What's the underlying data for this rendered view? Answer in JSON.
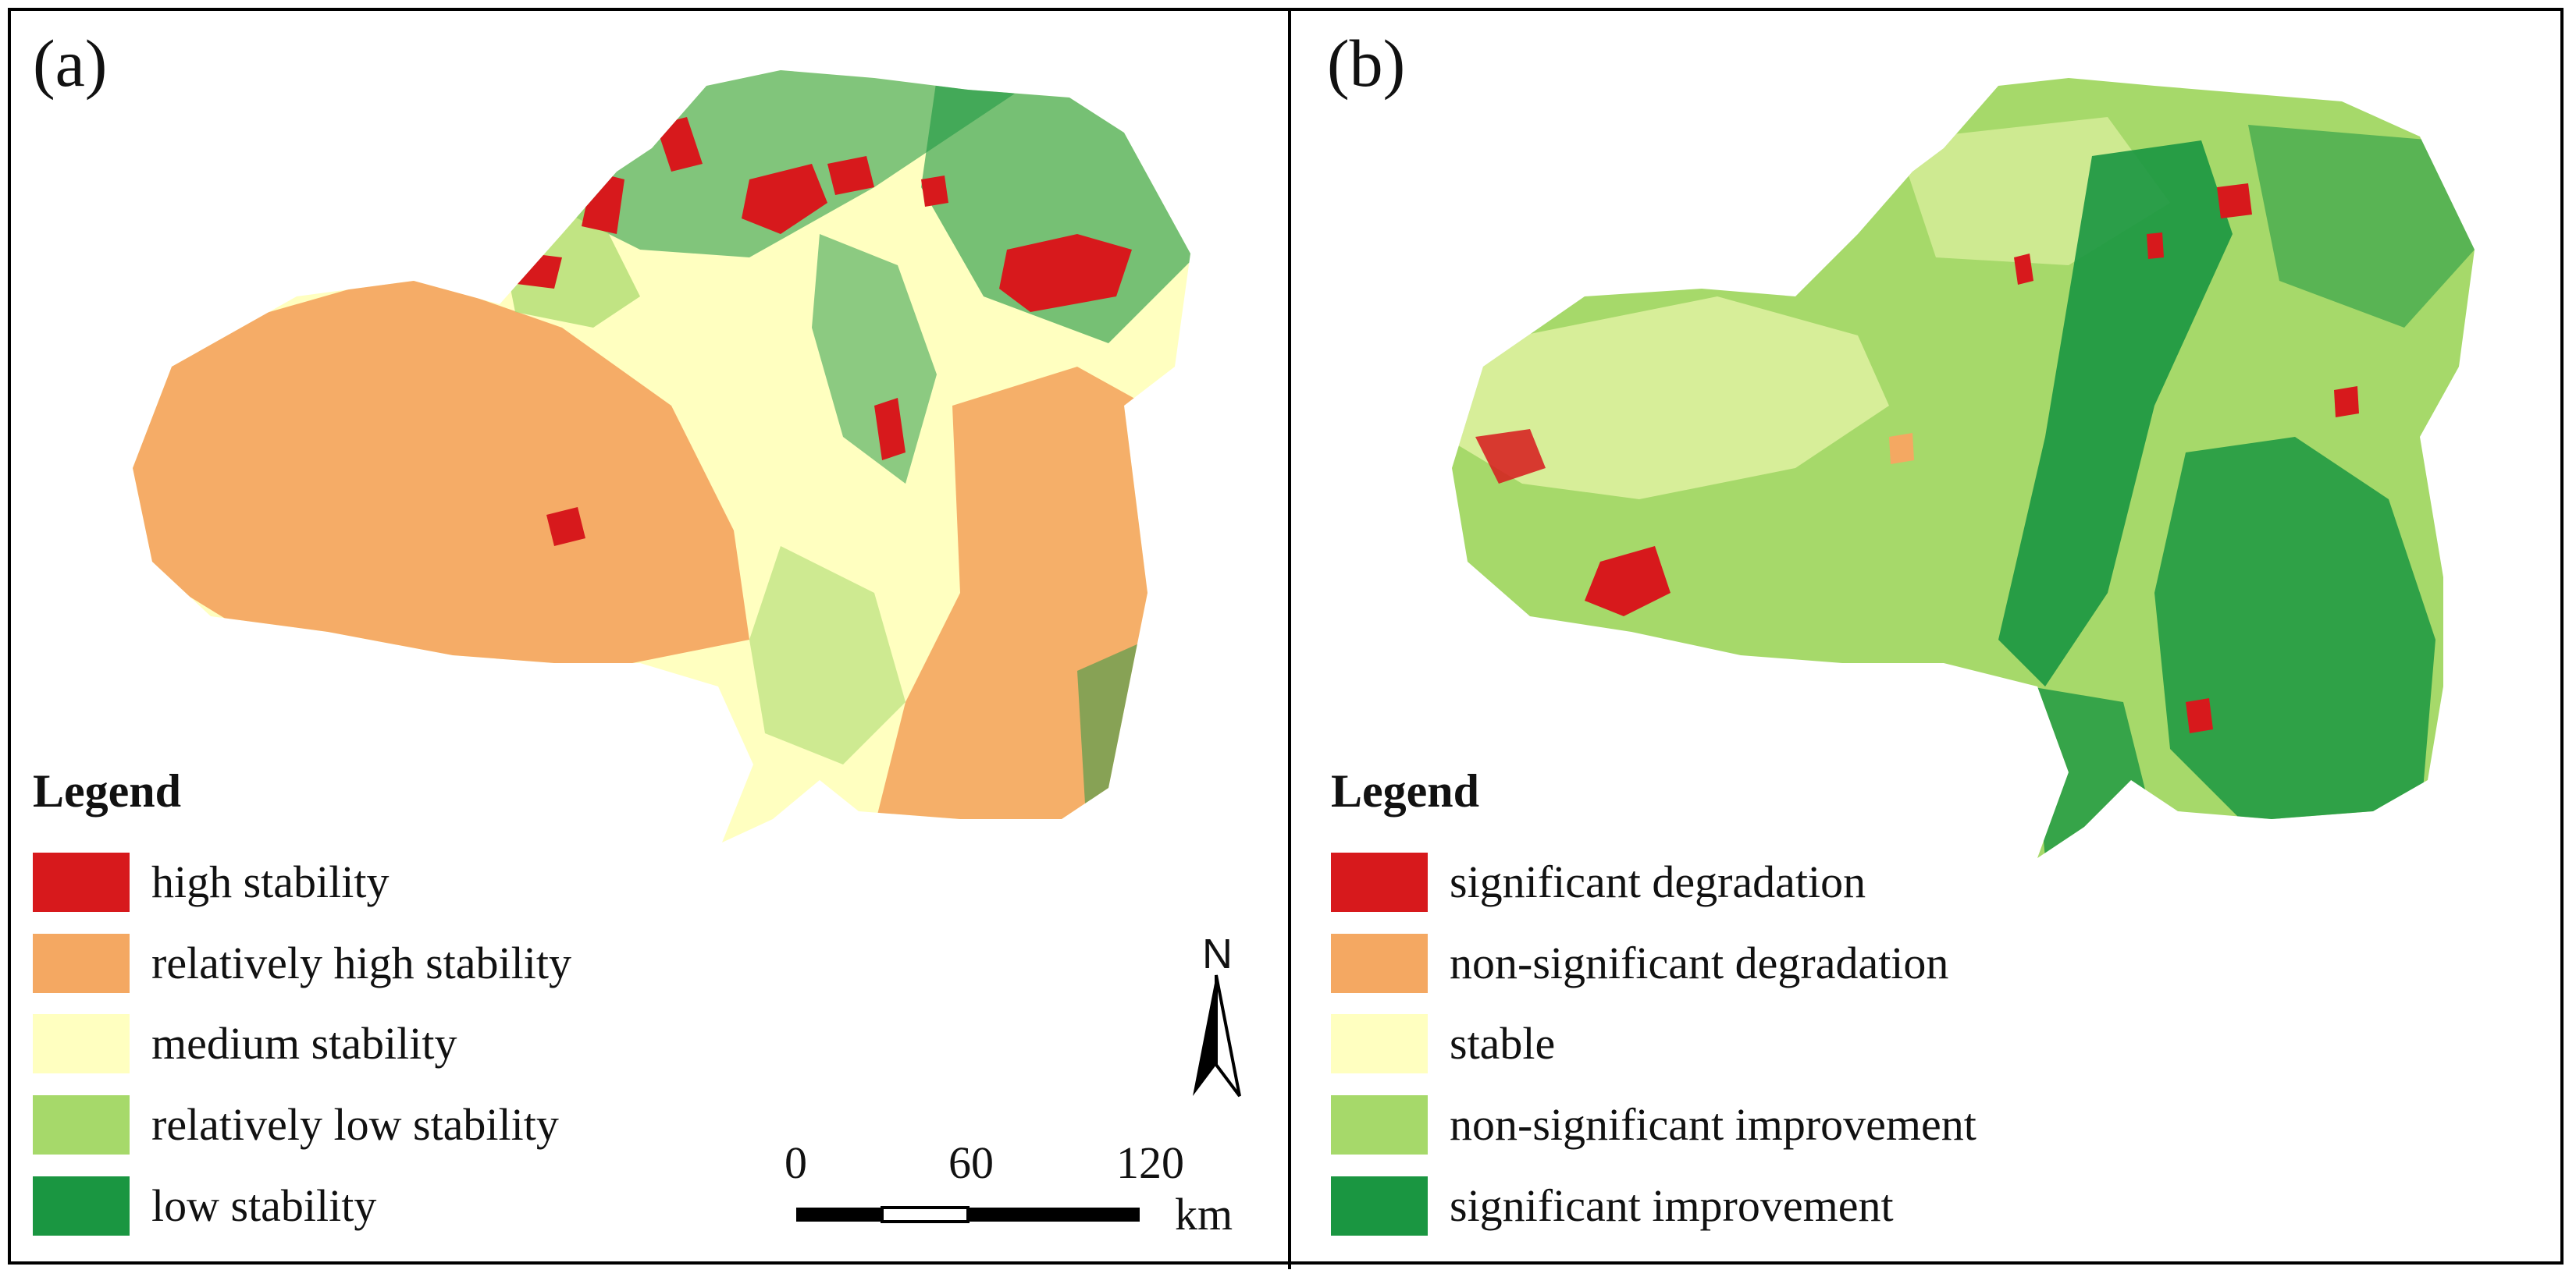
{
  "panel_a": {
    "label": "(a)",
    "legend": {
      "title": "Legend",
      "items": [
        {
          "label": "high stability",
          "color": "#d7191c"
        },
        {
          "label": "relatively high stability",
          "color": "#f4a862"
        },
        {
          "label": "medium stability",
          "color": "#ffffc0"
        },
        {
          "label": "relatively low stability",
          "color": "#a6d96a"
        },
        {
          "label": "low stability",
          "color": "#1a9641"
        }
      ]
    }
  },
  "panel_b": {
    "label": "(b)",
    "legend": {
      "title": "Legend",
      "items": [
        {
          "label": "significant degradation",
          "color": "#d7191c"
        },
        {
          "label": "non-significant degradation",
          "color": "#f4a862"
        },
        {
          "label": "stable",
          "color": "#ffffc0"
        },
        {
          "label": "non-significant improvement",
          "color": "#a6d96a"
        },
        {
          "label": "significant improvement",
          "color": "#1a9641"
        }
      ]
    }
  },
  "scale_bar": {
    "ticks": [
      "0",
      "60",
      "120"
    ],
    "unit": "km"
  },
  "north_arrow": {
    "label": "N"
  }
}
